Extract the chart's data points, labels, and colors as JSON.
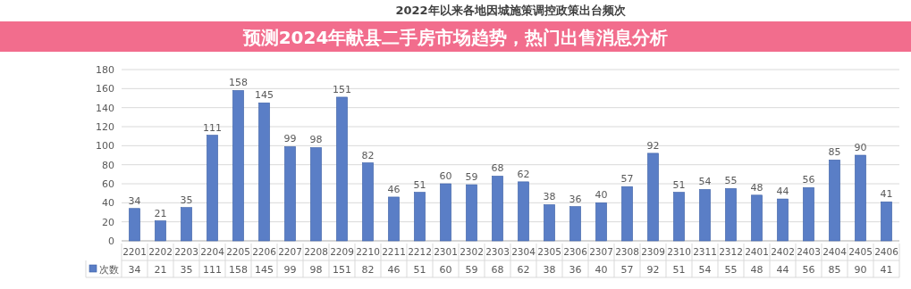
{
  "chart_data": {
    "type": "bar",
    "title": "2022年以来各地因城施策调控政策出台频次",
    "annotations": [
      "预测2024年献县二手房市场趋势，热门出售消息分析"
    ],
    "categories": [
      "2201",
      "2202",
      "2203",
      "2204",
      "2205",
      "2206",
      "2207",
      "2208",
      "2209",
      "2210",
      "2211",
      "2212",
      "2301",
      "2302",
      "2303",
      "2304",
      "2305",
      "2306",
      "2307",
      "2308",
      "2309",
      "2310",
      "2311",
      "2312",
      "2401",
      "2402",
      "2403",
      "2404",
      "2405",
      "2406"
    ],
    "series": [
      {
        "name": "次数",
        "color": "#5a7ec6",
        "values": [
          34,
          21,
          35,
          111,
          158,
          145,
          99,
          98,
          151,
          82,
          46,
          51,
          60,
          59,
          68,
          62,
          38,
          36,
          40,
          57,
          92,
          51,
          54,
          55,
          48,
          44,
          56,
          85,
          90,
          41
        ]
      }
    ],
    "totals": [
      "34",
      "21",
      "35",
      "111",
      "158",
      "145",
      "99",
      "98",
      "151",
      "82",
      "46",
      "51",
      "60",
      "59",
      "68",
      "62",
      "38",
      "36",
      "40",
      "57",
      "92",
      "51",
      "54",
      "55",
      "48",
      "44",
      "56",
      "85",
      "90",
      "41"
    ],
    "ylim": [
      0,
      180
    ],
    "yticks": [
      0,
      20,
      40,
      60,
      80,
      100,
      120,
      140,
      160,
      180
    ],
    "grid": "y",
    "legend": "bottom",
    "data_labels": true
  }
}
